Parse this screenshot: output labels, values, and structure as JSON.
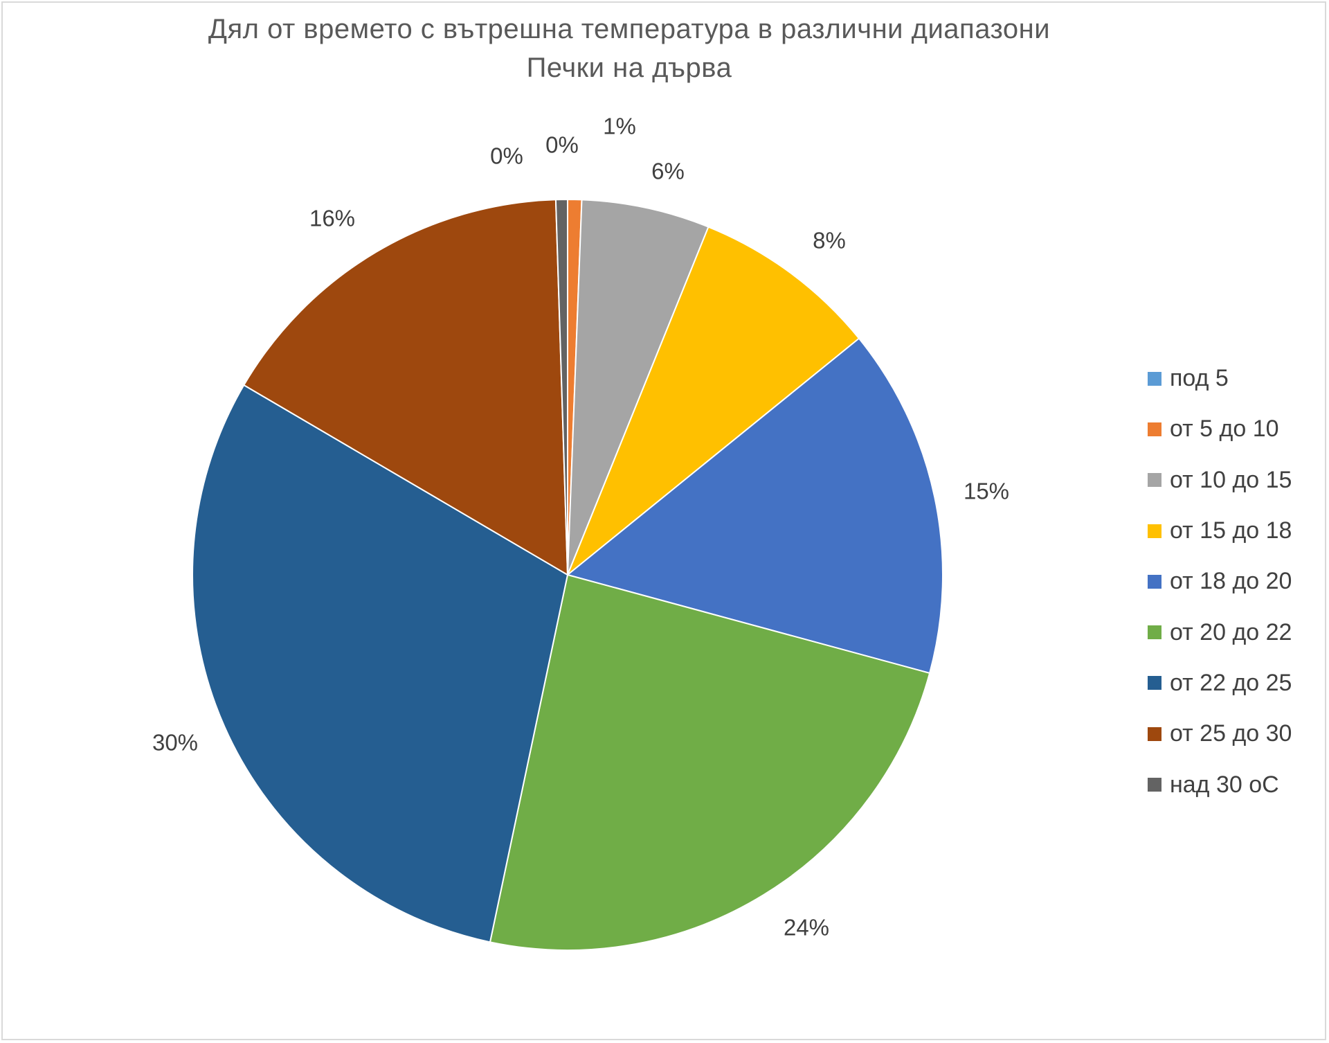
{
  "chart_data": {
    "type": "pie",
    "title": "Дял от времето с вътрешна температура в различни диапазони",
    "subtitle": "Печки на дърва",
    "categories": [
      "под 5",
      "от 5 до 10",
      "от 10 до 15",
      "от 15 до 18",
      "от 18 до 20",
      "от 20 до 22",
      "от 22 до 25",
      "от 25 до 30",
      "над 30 оС"
    ],
    "values": [
      0.0,
      0.6,
      5.5,
      8.0,
      15.0,
      24.0,
      30.0,
      16.0,
      0.5
    ],
    "data_labels": [
      "0%",
      "1%",
      "6%",
      "8%",
      "15%",
      "24%",
      "30%",
      "16%",
      "0%"
    ],
    "colors": [
      "#5b9bd5",
      "#ed7d31",
      "#a5a5a5",
      "#ffc000",
      "#4472c4",
      "#70ad47",
      "#255e91",
      "#9e480e",
      "#636363"
    ],
    "legend_position": "right",
    "start_angle": "12 o'clock",
    "direction": "clockwise"
  }
}
